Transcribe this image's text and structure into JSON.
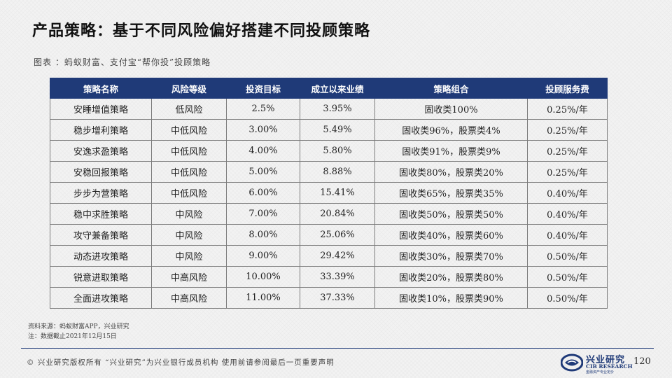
{
  "title": "产品策略：基于不同风险偏好搭建不同投顾策略",
  "caption": "图表 ：蚂蚁财富、支付宝“帮你投”投顾策略",
  "table": {
    "headers": [
      "策略名称",
      "风险等级",
      "投资目标",
      "成立以来业绩",
      "策略组合",
      "投顾服务费"
    ],
    "rows": [
      [
        "安睡增值策略",
        "低风险",
        "2.5%",
        "3.95%",
        "固收类100%",
        "0.25%/年"
      ],
      [
        "稳步增利策略",
        "中低风险",
        "3.00%",
        "5.49%",
        "固收类96%，股票类4%",
        "0.25%/年"
      ],
      [
        "安逸求盈策略",
        "中低风险",
        "4.00%",
        "5.80%",
        "固收类91%，股票类9%",
        "0.25%/年"
      ],
      [
        "安稳回报策略",
        "中低风险",
        "5.00%",
        "8.88%",
        "固收类80%，股票类20%",
        "0.25%/年"
      ],
      [
        "步步为营策略",
        "中低风险",
        "6.00%",
        "15.41%",
        "固收类65%，股票类35%",
        "0.40%/年"
      ],
      [
        "稳中求胜策略",
        "中风险",
        "7.00%",
        "20.84%",
        "固收类50%，股票类50%",
        "0.40%/年"
      ],
      [
        "攻守兼备策略",
        "中风险",
        "8.00%",
        "25.06%",
        "固收类40%，股票类60%",
        "0.40%/年"
      ],
      [
        "动态进攻策略",
        "中风险",
        "9.00%",
        "29.42%",
        "固收类30%，股票类70%",
        "0.50%/年"
      ],
      [
        "锐意进取策略",
        "中高风险",
        "10.00%",
        "33.39%",
        "固收类20%，股票类80%",
        "0.50%/年"
      ],
      [
        "全面进攻策略",
        "中高风险",
        "11.00%",
        "37.33%",
        "固收类10%，股票类90%",
        "0.50%/年"
      ]
    ]
  },
  "notes": {
    "source": "资料来源：蚂蚁财富APP，兴业研究",
    "note": "注：数据截止2021年12月15日"
  },
  "footer": {
    "copyright": "©  兴业研究版权所有    “兴业研究”为兴业银行成员机构   使用前请参阅最后一页重要声明",
    "logo_cn": "兴业研究",
    "logo_en": "CIB RESEARCH",
    "logo_sub": "金融资产专业定价",
    "page": "120"
  },
  "colors": {
    "header_bg": "#1f3a78",
    "accent": "#1f3a78"
  }
}
